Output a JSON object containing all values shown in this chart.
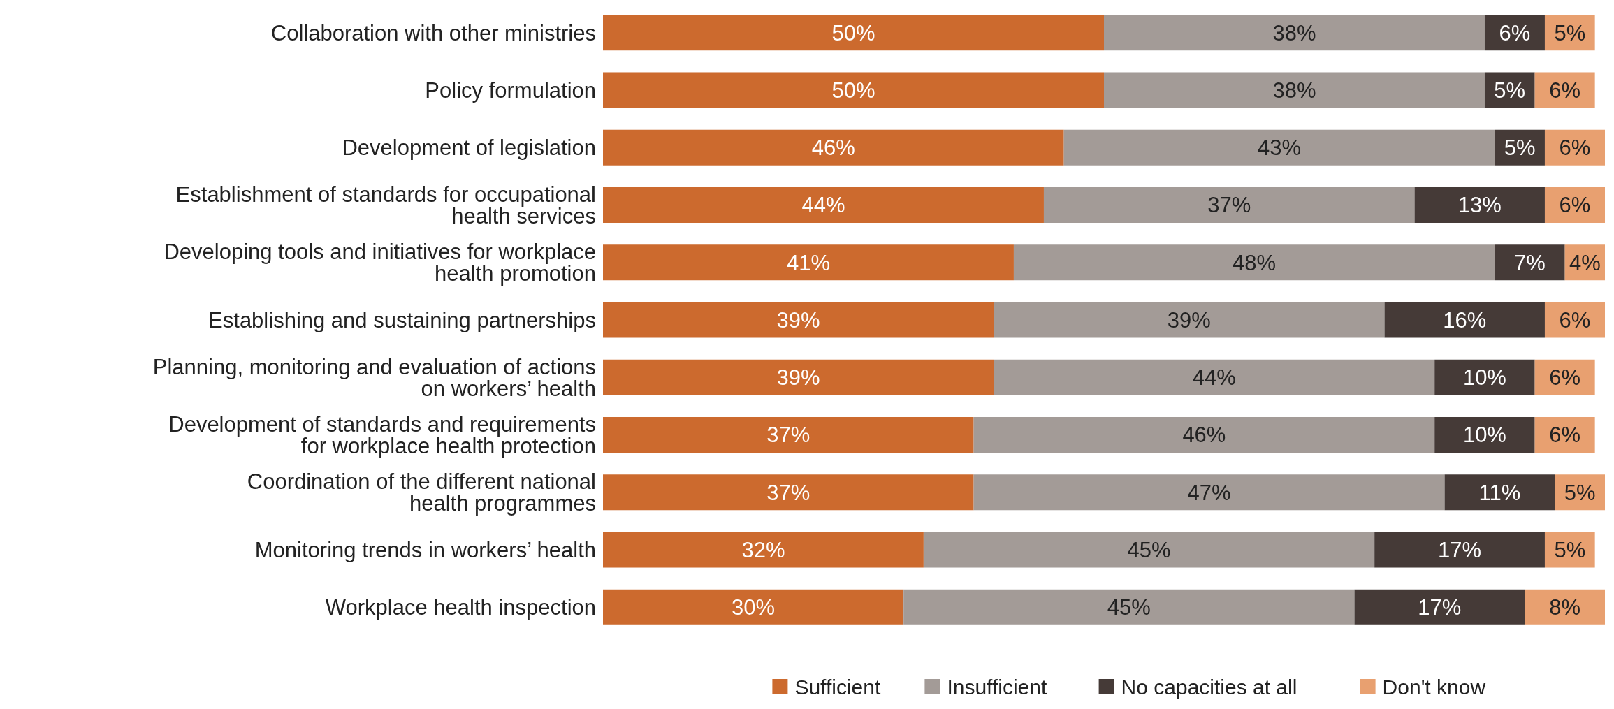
{
  "chart_data": {
    "type": "bar",
    "orientation": "horizontal",
    "stacked": true,
    "legend": "bottom",
    "categories": [
      "Collaboration with other ministries",
      "Policy formulation",
      "Development of legislation",
      "Establishment of standards for occupational\nhealth services",
      "Developing tools and initiatives for workplace\nhealth promotion",
      "Establishing and sustaining partnerships",
      "Planning, monitoring and evaluation of actions\non workers’ health",
      "Development of standards and requirements\nfor workplace health protection",
      "Coordination of the different national\nhealth programmes",
      "Monitoring trends in workers’ health",
      "Workplace health inspection"
    ],
    "series": [
      {
        "name": "Sufficient",
        "color": "#cc6a2e",
        "values": [
          50,
          50,
          46,
          44,
          41,
          39,
          39,
          37,
          37,
          32,
          30
        ],
        "value_labels": [
          "50%",
          "50%",
          "46%",
          "44%",
          "41%",
          "39%",
          "39%",
          "37%",
          "37%",
          "32%",
          "30%"
        ]
      },
      {
        "name": "Insufficient",
        "color": "#a39b97",
        "values": [
          38,
          38,
          43,
          37,
          48,
          39,
          44,
          46,
          47,
          45,
          45
        ],
        "value_labels": [
          "38%",
          "38%",
          "43%",
          "37%",
          "48%",
          "39%",
          "44%",
          "46%",
          "47%",
          "45%",
          "45%"
        ]
      },
      {
        "name": "No capacities at all",
        "color": "#453a37",
        "values": [
          6,
          5,
          5,
          13,
          7,
          16,
          10,
          10,
          11,
          17,
          17
        ],
        "value_labels": [
          "6%",
          "5%",
          "5%",
          "13%",
          "7%",
          "16%",
          "10%",
          "10%",
          "11%",
          "17%",
          "17%"
        ]
      },
      {
        "name": "Don't know",
        "color": "#e8a070",
        "values": [
          5,
          6,
          6,
          6,
          4,
          6,
          6,
          6,
          5,
          5,
          8
        ],
        "value_labels": [
          "5%",
          "6%",
          "6%",
          "6%",
          "4%",
          "6%",
          "6%",
          "6%",
          "5%",
          "5%",
          "8%"
        ]
      }
    ]
  }
}
